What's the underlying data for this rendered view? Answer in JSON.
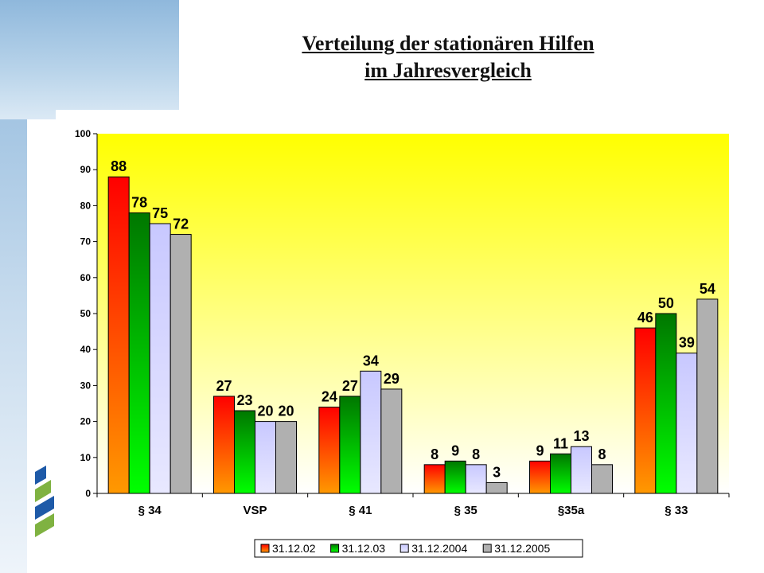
{
  "title": {
    "line1": "Verteilung der stationären Hilfen",
    "line2": "im Jahresvergleich"
  },
  "chart_data": {
    "type": "bar",
    "categories": [
      "§ 34",
      "VSP",
      "§ 41",
      "§ 35",
      "§35a",
      "§ 33"
    ],
    "series": [
      {
        "name": "31.12.02",
        "values": [
          88,
          27,
          24,
          8,
          9,
          46
        ],
        "colors": [
          "#ff0000",
          "#ff9900"
        ]
      },
      {
        "name": "31.12.03",
        "values": [
          78,
          23,
          27,
          9,
          11,
          50
        ],
        "colors": [
          "#007700",
          "#00ff00"
        ]
      },
      {
        "name": "31.12.2004",
        "values": [
          75,
          20,
          34,
          8,
          13,
          39
        ],
        "colors": [
          "#c8c8ff",
          "#e8e8ff"
        ]
      },
      {
        "name": "31.12.2005",
        "values": [
          72,
          20,
          29,
          3,
          8,
          54
        ],
        "colors": [
          "#b0b0b0",
          "#b0b0b0"
        ]
      }
    ],
    "ylim": [
      0,
      100
    ],
    "yticks": [
      0,
      10,
      20,
      30,
      40,
      50,
      60,
      70,
      80,
      90,
      100
    ],
    "plot_background": [
      "#ffff00",
      "#ffffff"
    ],
    "legend_position": "bottom",
    "data_labels": true,
    "grid": false
  }
}
